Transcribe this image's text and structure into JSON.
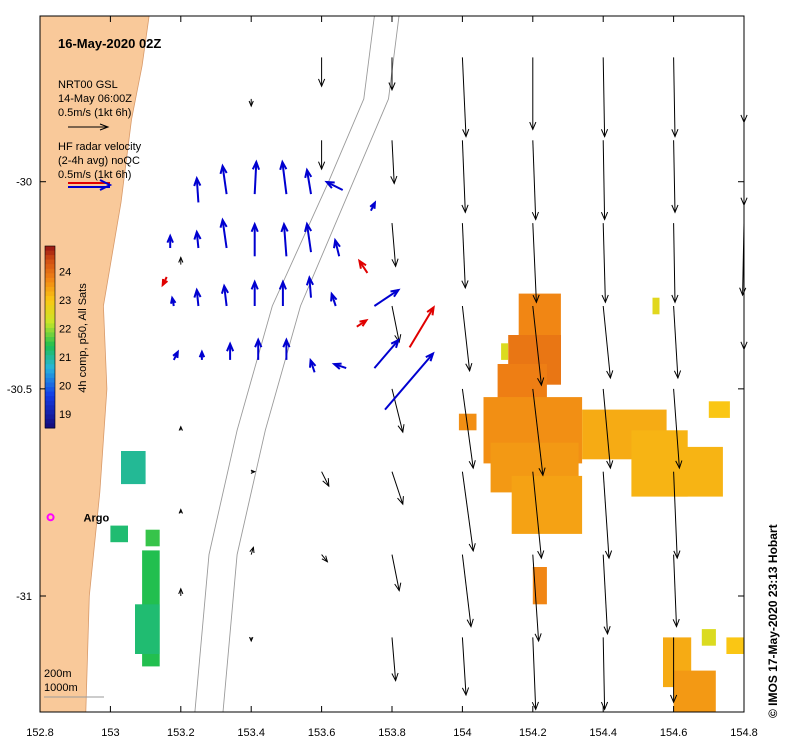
{
  "title": "16-May-2020 02Z",
  "credit": "© IMOS 17-May-2020 23:13 Hobart",
  "argo_label": "Argo",
  "legend": {
    "model_lines": [
      "NRT00 GSL",
      "14-May 06:00Z",
      "0.5m/s (1kt 6h)"
    ],
    "radar_lines": [
      "HF radar velocity",
      "(2-4h avg) noQC",
      "0.5m/s (1kt 6h)"
    ]
  },
  "isobaths": [
    "200m",
    "1000m"
  ],
  "colorbar": {
    "label": "4h comp, p50, All Sats",
    "ticks": [
      "19",
      "20",
      "21",
      "22",
      "23",
      "24"
    ],
    "min": 18.5,
    "max": 24.9
  },
  "x_ticks": [
    "152.8",
    "153",
    "153.2",
    "153.4",
    "153.6",
    "153.8",
    "154",
    "154.2",
    "154.4",
    "154.6",
    "154.8"
  ],
  "y_ticks": [
    "-30",
    "-30.5",
    "-31"
  ],
  "colors": {
    "land": "#f9c99a",
    "model": "#000000",
    "radar": "#0000d0",
    "radar_flag": "#e00000",
    "argo": "#ff00ff"
  },
  "chart_data": {
    "type": "map",
    "xlim": [
      152.8,
      154.8
    ],
    "ylim": [
      -31.28,
      -29.6
    ],
    "coast": [
      [
        153.11,
        -29.6
      ],
      [
        153.09,
        -29.72
      ],
      [
        153.06,
        -29.85
      ],
      [
        153.03,
        -30.05
      ],
      [
        152.98,
        -30.3
      ],
      [
        152.99,
        -30.5
      ],
      [
        152.97,
        -30.75
      ],
      [
        152.94,
        -31.0
      ],
      [
        152.93,
        -31.28
      ]
    ],
    "isobath_200m": [
      [
        153.75,
        -29.6
      ],
      [
        153.72,
        -29.8
      ],
      [
        153.62,
        -30.0
      ],
      [
        153.46,
        -30.3
      ],
      [
        153.36,
        -30.6
      ],
      [
        153.28,
        -30.9
      ],
      [
        153.24,
        -31.28
      ]
    ],
    "isobath_1000m": [
      [
        153.82,
        -29.6
      ],
      [
        153.79,
        -29.8
      ],
      [
        153.69,
        -30.0
      ],
      [
        153.54,
        -30.3
      ],
      [
        153.44,
        -30.6
      ],
      [
        153.36,
        -30.9
      ],
      [
        153.32,
        -31.28
      ]
    ],
    "model_vectors": [
      {
        "lon": 153.6,
        "lat": -29.7,
        "u": 0.0,
        "v": -0.4
      },
      {
        "lon": 153.8,
        "lat": -29.7,
        "u": 0.0,
        "v": -0.45
      },
      {
        "lon": 154.0,
        "lat": -29.7,
        "u": 0.05,
        "v": -1.1
      },
      {
        "lon": 154.2,
        "lat": -29.7,
        "u": 0.0,
        "v": -1.0
      },
      {
        "lon": 154.4,
        "lat": -29.7,
        "u": 0.02,
        "v": -1.1
      },
      {
        "lon": 154.6,
        "lat": -29.7,
        "u": 0.02,
        "v": -1.1
      },
      {
        "lon": 154.8,
        "lat": -29.7,
        "u": 0.0,
        "v": -0.9
      },
      {
        "lon": 153.6,
        "lat": -29.9,
        "u": 0.0,
        "v": -0.4
      },
      {
        "lon": 153.8,
        "lat": -29.9,
        "u": 0.03,
        "v": -0.6
      },
      {
        "lon": 154.0,
        "lat": -29.9,
        "u": 0.04,
        "v": -1.0
      },
      {
        "lon": 154.2,
        "lat": -29.9,
        "u": 0.04,
        "v": -1.1
      },
      {
        "lon": 154.4,
        "lat": -29.9,
        "u": 0.02,
        "v": -1.1
      },
      {
        "lon": 154.6,
        "lat": -29.9,
        "u": 0.02,
        "v": -1.0
      },
      {
        "lon": 154.8,
        "lat": -29.9,
        "u": 0.0,
        "v": -0.9
      },
      {
        "lon": 153.8,
        "lat": -30.1,
        "u": 0.05,
        "v": -0.6
      },
      {
        "lon": 154.0,
        "lat": -30.1,
        "u": 0.04,
        "v": -0.9
      },
      {
        "lon": 154.2,
        "lat": -30.1,
        "u": 0.05,
        "v": -1.1
      },
      {
        "lon": 154.4,
        "lat": -30.1,
        "u": 0.03,
        "v": -1.1
      },
      {
        "lon": 154.6,
        "lat": -30.1,
        "u": 0.02,
        "v": -1.1
      },
      {
        "lon": 154.8,
        "lat": -30.1,
        "u": -0.02,
        "v": -1.0
      },
      {
        "lon": 153.8,
        "lat": -30.3,
        "u": 0.1,
        "v": -0.5
      },
      {
        "lon": 154.0,
        "lat": -30.3,
        "u": 0.1,
        "v": -0.9
      },
      {
        "lon": 154.2,
        "lat": -30.3,
        "u": 0.12,
        "v": -1.1
      },
      {
        "lon": 154.4,
        "lat": -30.3,
        "u": 0.1,
        "v": -1.0
      },
      {
        "lon": 154.6,
        "lat": -30.3,
        "u": 0.06,
        "v": -1.0
      },
      {
        "lon": 154.8,
        "lat": -30.3,
        "u": 0.0,
        "v": -0.6
      },
      {
        "lon": 153.8,
        "lat": -30.5,
        "u": 0.15,
        "v": -0.6
      },
      {
        "lon": 154.0,
        "lat": -30.5,
        "u": 0.15,
        "v": -1.1
      },
      {
        "lon": 154.2,
        "lat": -30.5,
        "u": 0.14,
        "v": -1.2
      },
      {
        "lon": 154.4,
        "lat": -30.5,
        "u": 0.1,
        "v": -1.1
      },
      {
        "lon": 154.6,
        "lat": -30.5,
        "u": 0.08,
        "v": -1.1
      },
      {
        "lon": 154.8,
        "lat": -30.5,
        "u": 0.0,
        "v": 0.0
      },
      {
        "lon": 153.6,
        "lat": -30.7,
        "u": 0.1,
        "v": -0.2
      },
      {
        "lon": 153.8,
        "lat": -30.7,
        "u": 0.15,
        "v": -0.45
      },
      {
        "lon": 154.0,
        "lat": -30.7,
        "u": 0.15,
        "v": -1.1
      },
      {
        "lon": 154.2,
        "lat": -30.7,
        "u": 0.12,
        "v": -1.2
      },
      {
        "lon": 154.4,
        "lat": -30.7,
        "u": 0.08,
        "v": -1.2
      },
      {
        "lon": 154.6,
        "lat": -30.7,
        "u": 0.05,
        "v": -1.2
      },
      {
        "lon": 153.6,
        "lat": -30.9,
        "u": 0.08,
        "v": -0.1
      },
      {
        "lon": 153.8,
        "lat": -30.9,
        "u": 0.1,
        "v": -0.5
      },
      {
        "lon": 154.0,
        "lat": -30.9,
        "u": 0.12,
        "v": -1.0
      },
      {
        "lon": 154.2,
        "lat": -30.9,
        "u": 0.08,
        "v": -1.2
      },
      {
        "lon": 154.4,
        "lat": -30.9,
        "u": 0.06,
        "v": -1.1
      },
      {
        "lon": 154.6,
        "lat": -30.9,
        "u": 0.04,
        "v": -1.0
      },
      {
        "lon": 153.8,
        "lat": -31.1,
        "u": 0.05,
        "v": -0.6
      },
      {
        "lon": 154.0,
        "lat": -31.1,
        "u": 0.05,
        "v": -0.8
      },
      {
        "lon": 154.2,
        "lat": -31.1,
        "u": 0.04,
        "v": -1.0
      },
      {
        "lon": 154.4,
        "lat": -31.1,
        "u": 0.02,
        "v": -1.0
      },
      {
        "lon": 154.6,
        "lat": -31.1,
        "u": 0.0,
        "v": -0.9
      },
      {
        "lon": 153.2,
        "lat": -30.2,
        "u": 0.0,
        "v": 0.1
      },
      {
        "lon": 153.4,
        "lat": -29.8,
        "u": 0.0,
        "v": -0.1
      },
      {
        "lon": 153.4,
        "lat": -30.7,
        "u": 0.05,
        "v": 0.0
      },
      {
        "lon": 153.4,
        "lat": -30.9,
        "u": 0.03,
        "v": 0.1
      },
      {
        "lon": 153.2,
        "lat": -31.0,
        "u": 0.0,
        "v": 0.1
      },
      {
        "lon": 153.4,
        "lat": -31.1,
        "u": 0.0,
        "v": -0.05
      },
      {
        "lon": 153.2,
        "lat": -30.6,
        "u": 0.0,
        "v": 0.05
      },
      {
        "lon": 153.2,
        "lat": -30.8,
        "u": 0.0,
        "v": 0.05
      }
    ],
    "radar_vectors": [
      {
        "lon": 153.25,
        "lat": -30.05,
        "u": -0.02,
        "v": 0.3,
        "flag": false
      },
      {
        "lon": 153.33,
        "lat": -30.03,
        "u": -0.05,
        "v": 0.35,
        "flag": false
      },
      {
        "lon": 153.41,
        "lat": -30.03,
        "u": 0.02,
        "v": 0.4,
        "flag": false
      },
      {
        "lon": 153.5,
        "lat": -30.03,
        "u": -0.05,
        "v": 0.4,
        "flag": false
      },
      {
        "lon": 153.57,
        "lat": -30.03,
        "u": -0.05,
        "v": 0.3,
        "flag": false
      },
      {
        "lon": 153.66,
        "lat": -30.02,
        "u": -0.2,
        "v": 0.1,
        "flag": false
      },
      {
        "lon": 153.74,
        "lat": -30.07,
        "u": 0.05,
        "v": 0.1,
        "flag": false
      },
      {
        "lon": 153.17,
        "lat": -30.16,
        "u": 0.0,
        "v": 0.15,
        "flag": false
      },
      {
        "lon": 153.25,
        "lat": -30.16,
        "u": -0.02,
        "v": 0.2,
        "flag": false
      },
      {
        "lon": 153.33,
        "lat": -30.16,
        "u": -0.05,
        "v": 0.35,
        "flag": false
      },
      {
        "lon": 153.41,
        "lat": -30.18,
        "u": 0.0,
        "v": 0.4,
        "flag": false
      },
      {
        "lon": 153.5,
        "lat": -30.18,
        "u": -0.03,
        "v": 0.4,
        "flag": false
      },
      {
        "lon": 153.57,
        "lat": -30.17,
        "u": -0.05,
        "v": 0.35,
        "flag": false
      },
      {
        "lon": 153.65,
        "lat": -30.18,
        "u": -0.05,
        "v": 0.2,
        "flag": false
      },
      {
        "lon": 153.73,
        "lat": -30.22,
        "u": -0.1,
        "v": 0.15,
        "flag": true
      },
      {
        "lon": 153.16,
        "lat": -30.23,
        "u": -0.05,
        "v": -0.1,
        "flag": true
      },
      {
        "lon": 153.18,
        "lat": -30.3,
        "u": -0.02,
        "v": 0.1,
        "flag": false
      },
      {
        "lon": 153.25,
        "lat": -30.3,
        "u": -0.02,
        "v": 0.2,
        "flag": false
      },
      {
        "lon": 153.33,
        "lat": -30.3,
        "u": -0.03,
        "v": 0.25,
        "flag": false
      },
      {
        "lon": 153.41,
        "lat": -30.3,
        "u": 0.0,
        "v": 0.3,
        "flag": false
      },
      {
        "lon": 153.49,
        "lat": -30.3,
        "u": 0.0,
        "v": 0.3,
        "flag": false
      },
      {
        "lon": 153.57,
        "lat": -30.28,
        "u": -0.02,
        "v": 0.25,
        "flag": false
      },
      {
        "lon": 153.64,
        "lat": -30.3,
        "u": -0.05,
        "v": 0.15,
        "flag": false
      },
      {
        "lon": 153.75,
        "lat": -30.3,
        "u": 0.3,
        "v": 0.2,
        "flag": false
      },
      {
        "lon": 153.18,
        "lat": -30.43,
        "u": 0.05,
        "v": 0.1,
        "flag": false
      },
      {
        "lon": 153.26,
        "lat": -30.43,
        "u": 0.0,
        "v": 0.1,
        "flag": false
      },
      {
        "lon": 153.34,
        "lat": -30.43,
        "u": 0.0,
        "v": 0.2,
        "flag": false
      },
      {
        "lon": 153.42,
        "lat": -30.43,
        "u": 0.0,
        "v": 0.25,
        "flag": false
      },
      {
        "lon": 153.5,
        "lat": -30.43,
        "u": 0.0,
        "v": 0.25,
        "flag": false
      },
      {
        "lon": 153.58,
        "lat": -30.46,
        "u": -0.05,
        "v": 0.15,
        "flag": false
      },
      {
        "lon": 153.67,
        "lat": -30.45,
        "u": -0.15,
        "v": 0.05,
        "flag": false
      },
      {
        "lon": 153.75,
        "lat": -30.45,
        "u": 0.3,
        "v": 0.35,
        "flag": false
      },
      {
        "lon": 153.85,
        "lat": -30.4,
        "u": 0.3,
        "v": 0.5,
        "flag": true
      },
      {
        "lon": 153.78,
        "lat": -30.55,
        "u": 0.6,
        "v": 0.7,
        "flag": false
      },
      {
        "lon": 153.7,
        "lat": -30.35,
        "u": 0.12,
        "v": 0.08,
        "flag": true
      }
    ],
    "sst_blocks": [
      {
        "lon": 153.03,
        "lat": -30.65,
        "w": 0.07,
        "h": 0.08,
        "sst": 21.0
      },
      {
        "lon": 153.0,
        "lat": -30.83,
        "w": 0.05,
        "h": 0.04,
        "sst": 21.2
      },
      {
        "lon": 153.1,
        "lat": -30.84,
        "w": 0.04,
        "h": 0.04,
        "sst": 21.5
      },
      {
        "lon": 153.09,
        "lat": -30.89,
        "w": 0.05,
        "h": 0.28,
        "sst": 21.4
      },
      {
        "lon": 153.07,
        "lat": -31.02,
        "w": 0.07,
        "h": 0.12,
        "sst": 21.2
      },
      {
        "lon": 154.16,
        "lat": -30.27,
        "w": 0.12,
        "h": 0.17,
        "sst": 23.7
      },
      {
        "lon": 154.13,
        "lat": -30.37,
        "w": 0.15,
        "h": 0.12,
        "sst": 23.9
      },
      {
        "lon": 154.1,
        "lat": -30.44,
        "w": 0.14,
        "h": 0.16,
        "sst": 23.8
      },
      {
        "lon": 154.06,
        "lat": -30.52,
        "w": 0.28,
        "h": 0.16,
        "sst": 23.6
      },
      {
        "lon": 154.08,
        "lat": -30.63,
        "w": 0.25,
        "h": 0.12,
        "sst": 23.5
      },
      {
        "lon": 154.14,
        "lat": -30.71,
        "w": 0.2,
        "h": 0.14,
        "sst": 23.4
      },
      {
        "lon": 154.34,
        "lat": -30.55,
        "w": 0.24,
        "h": 0.12,
        "sst": 23.3
      },
      {
        "lon": 154.48,
        "lat": -30.6,
        "w": 0.16,
        "h": 0.16,
        "sst": 23.2
      },
      {
        "lon": 154.6,
        "lat": -30.64,
        "w": 0.14,
        "h": 0.12,
        "sst": 23.2
      },
      {
        "lon": 154.7,
        "lat": -30.53,
        "w": 0.06,
        "h": 0.04,
        "sst": 23.0
      },
      {
        "lon": 153.99,
        "lat": -30.56,
        "w": 0.05,
        "h": 0.04,
        "sst": 23.6
      },
      {
        "lon": 154.2,
        "lat": -30.93,
        "w": 0.04,
        "h": 0.09,
        "sst": 23.7
      },
      {
        "lon": 154.57,
        "lat": -31.1,
        "w": 0.08,
        "h": 0.12,
        "sst": 23.3
      },
      {
        "lon": 154.6,
        "lat": -31.18,
        "w": 0.12,
        "h": 0.1,
        "sst": 23.5
      },
      {
        "lon": 154.68,
        "lat": -31.08,
        "w": 0.04,
        "h": 0.04,
        "sst": 22.5
      },
      {
        "lon": 154.75,
        "lat": -31.1,
        "w": 0.05,
        "h": 0.04,
        "sst": 23.0
      },
      {
        "lon": 154.54,
        "lat": -30.28,
        "w": 0.02,
        "h": 0.04,
        "sst": 22.6
      },
      {
        "lon": 154.11,
        "lat": -30.39,
        "w": 0.02,
        "h": 0.04,
        "sst": 22.5
      }
    ],
    "argo": {
      "lon": 152.83,
      "lat": -30.81
    }
  }
}
